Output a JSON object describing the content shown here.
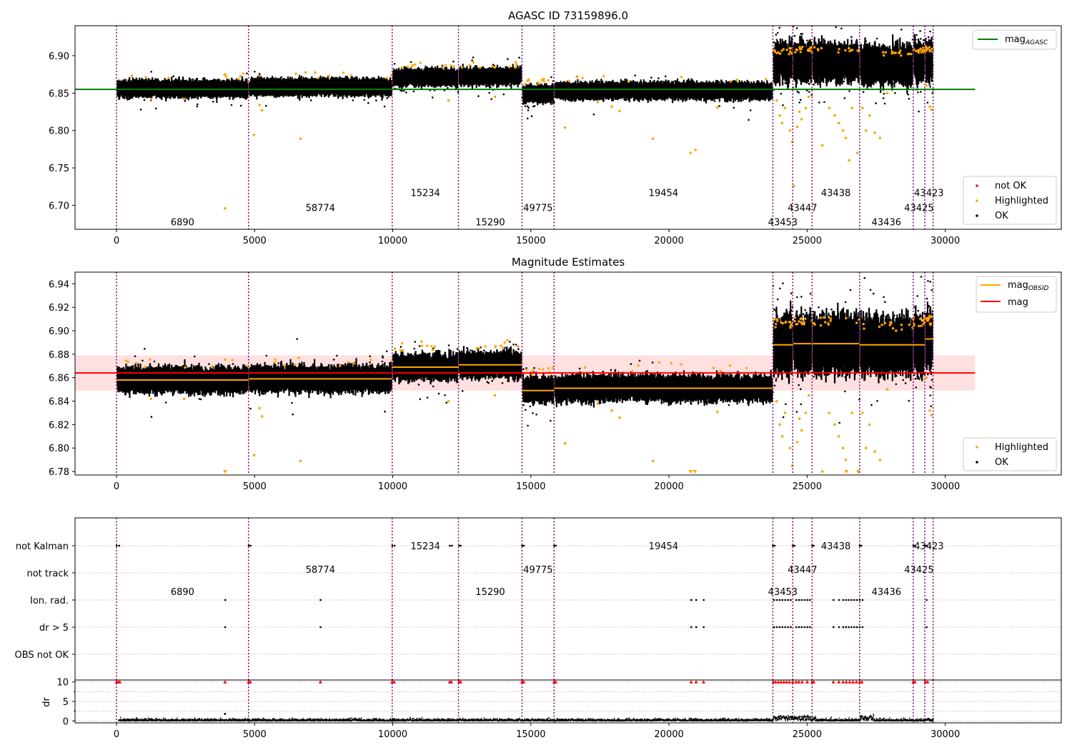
{
  "chart_data": [
    {
      "type": "scatter",
      "title": "AGASC ID 73159896.0",
      "xlim": [
        -1500,
        34200
      ],
      "ylim": [
        6.668,
        6.94
      ],
      "x_ticks": [
        0,
        5000,
        10000,
        15000,
        20000,
        25000,
        30000
      ],
      "y_ticks": [
        6.7,
        6.75,
        6.8,
        6.85,
        6.9
      ],
      "y_tick_labels": [
        "6.70",
        "6.75",
        "6.80",
        "6.85",
        "6.90"
      ],
      "grid": false,
      "obs_boundaries": [
        0,
        4780,
        9980,
        12380,
        14680,
        15840,
        23760,
        24480,
        25180,
        26900,
        28840,
        29260,
        29560
      ],
      "segments": [
        {
          "obsid": "6890",
          "x0": 0,
          "x1": 4780,
          "mean": 6.856
        },
        {
          "obsid": "58774",
          "x0": 4780,
          "x1": 9980,
          "mean": 6.858
        },
        {
          "obsid": "15234",
          "x0": 9980,
          "x1": 12380,
          "mean": 6.871
        },
        {
          "obsid": "15290",
          "x0": 12380,
          "x1": 14680,
          "mean": 6.872
        },
        {
          "obsid": "49775",
          "x0": 14680,
          "x1": 15840,
          "mean": 6.849
        },
        {
          "obsid": "19454",
          "x0": 15840,
          "x1": 23760,
          "mean": 6.853
        },
        {
          "obsid": "43453",
          "x0": 23760,
          "x1": 24480,
          "mean": 6.89
        },
        {
          "obsid": "43447",
          "x0": 24480,
          "x1": 25180,
          "mean": 6.892
        },
        {
          "obsid": "43438",
          "x0": 25180,
          "x1": 26900,
          "mean": 6.892
        },
        {
          "obsid": "43436",
          "x0": 26900,
          "x1": 28840,
          "mean": 6.888
        },
        {
          "obsid": "43425",
          "x0": 28840,
          "x1": 29260,
          "mean": 6.892
        },
        {
          "obsid": "43423",
          "x0": 29260,
          "x1": 29560,
          "mean": 6.893
        }
      ],
      "obsid_label_positions": [
        {
          "label": "6890",
          "x": 2390,
          "y": 6.677
        },
        {
          "label": "58774",
          "x": 7380,
          "y": 6.696
        },
        {
          "label": "15234",
          "x": 11180,
          "y": 6.716
        },
        {
          "label": "15290",
          "x": 13530,
          "y": 6.677
        },
        {
          "label": "49775",
          "x": 15260,
          "y": 6.696
        },
        {
          "label": "19454",
          "x": 19800,
          "y": 6.716
        },
        {
          "label": "43453",
          "x": 24120,
          "y": 6.677
        },
        {
          "label": "43447",
          "x": 24830,
          "y": 6.696
        },
        {
          "label": "43438",
          "x": 26040,
          "y": 6.716
        },
        {
          "label": "43436",
          "x": 27870,
          "y": 6.677
        },
        {
          "label": "43425",
          "x": 29050,
          "y": 6.696
        },
        {
          "label": "43423",
          "x": 29410,
          "y": 6.716
        }
      ],
      "mag_agasc": 6.855,
      "mag_agasc_xrange": [
        -1500,
        31080
      ],
      "legend_upper": {
        "position": "upper right",
        "entries": [
          "mag",
          "AGASC"
        ]
      },
      "legend_lower": {
        "position": "lower right",
        "entries": [
          "not OK",
          "Highlighted",
          "OK"
        ]
      },
      "highlighted_points": [
        [
          3930,
          6.696
        ],
        [
          4980,
          6.794
        ],
        [
          5270,
          6.827
        ],
        [
          5180,
          6.834
        ],
        [
          6660,
          6.789
        ],
        [
          1250,
          6.842
        ],
        [
          2450,
          6.842
        ],
        [
          12020,
          6.84
        ],
        [
          13700,
          6.845
        ],
        [
          16240,
          6.804
        ],
        [
          17420,
          6.838
        ],
        [
          18210,
          6.826
        ],
        [
          19420,
          6.789
        ],
        [
          20780,
          6.77
        ],
        [
          20960,
          6.774
        ],
        [
          21750,
          6.831
        ],
        [
          17930,
          6.832
        ],
        [
          23900,
          6.84
        ],
        [
          24010,
          6.82
        ],
        [
          24100,
          6.81
        ],
        [
          24200,
          6.83
        ],
        [
          24380,
          6.8
        ],
        [
          24460,
          6.785
        ],
        [
          24520,
          6.726
        ],
        [
          24640,
          6.805
        ],
        [
          24720,
          6.825
        ],
        [
          24800,
          6.815
        ],
        [
          24950,
          6.83
        ],
        [
          25060,
          6.845
        ],
        [
          25550,
          6.78
        ],
        [
          25800,
          6.83
        ],
        [
          26000,
          6.82
        ],
        [
          26150,
          6.81
        ],
        [
          26300,
          6.8
        ],
        [
          26400,
          6.79
        ],
        [
          26520,
          6.76
        ],
        [
          26620,
          6.83
        ],
        [
          26820,
          6.77
        ],
        [
          27000,
          6.83
        ],
        [
          27130,
          6.8
        ],
        [
          27260,
          6.82
        ],
        [
          27450,
          6.797
        ],
        [
          27640,
          6.79
        ],
        [
          27900,
          6.85
        ],
        [
          29320,
          6.86
        ],
        [
          29440,
          6.832
        ],
        [
          29500,
          6.828
        ]
      ]
    },
    {
      "type": "scatter",
      "title": "Magnitude Estimates",
      "xlim": [
        -1500,
        34200
      ],
      "ylim": [
        6.777,
        6.95
      ],
      "x_ticks": [
        0,
        5000,
        10000,
        15000,
        20000,
        25000,
        30000
      ],
      "y_ticks": [
        6.78,
        6.8,
        6.82,
        6.84,
        6.86,
        6.88,
        6.9,
        6.92,
        6.94
      ],
      "y_tick_labels": [
        "6.78",
        "6.80",
        "6.82",
        "6.84",
        "6.86",
        "6.88",
        "6.90",
        "6.92",
        "6.94"
      ],
      "grid": false,
      "mag": 6.864,
      "mag_band": [
        6.849,
        6.879
      ],
      "mag_xrange": [
        -1500,
        31080
      ],
      "segment_means": [
        6.858,
        6.859,
        6.869,
        6.871,
        6.849,
        6.851,
        6.888,
        6.889,
        6.889,
        6.888,
        6.888,
        6.893
      ],
      "legend_upper": {
        "position": "upper right",
        "entries": [
          "mag",
          "OBSID",
          "mag"
        ]
      },
      "legend_lower": {
        "position": "lower right",
        "entries": [
          "Highlighted",
          "OK"
        ]
      },
      "clipped_low_x": [
        3930,
        20780,
        20940,
        26420,
        26850
      ]
    },
    {
      "type": "scatter",
      "title": "",
      "xlim": [
        -1500,
        34200
      ],
      "x_ticks": [
        0,
        5000,
        10000,
        15000,
        20000,
        25000,
        30000
      ],
      "flag_rows": [
        "not Kalman",
        "not track",
        "Ion. rad.",
        "dr > 5",
        "OBS not OK"
      ],
      "flags": {
        "not Kalman": [
          0,
          90,
          4780,
          4850,
          9980,
          10060,
          12060,
          12140,
          12400,
          12460,
          14680,
          14740,
          15840,
          15900,
          23760,
          23820,
          24480,
          24540,
          25180,
          25230,
          26900,
          26960,
          28840,
          28900,
          29260,
          29320
        ],
        "not track": [],
        "Ion. rad.": [
          3930,
          7380,
          20800,
          20980,
          21250,
          23800,
          23900,
          24000,
          24100,
          24200,
          24300,
          24400,
          24600,
          24700,
          24800,
          24900,
          25000,
          25100,
          25950,
          26150,
          26300,
          26400,
          26500,
          26600,
          26700,
          26800,
          26900,
          27000,
          29320
        ],
        "dr > 5": [
          3930,
          7380,
          20800,
          20980,
          21250,
          23800,
          23900,
          24000,
          24100,
          24200,
          24300,
          24400,
          24600,
          24700,
          24800,
          24900,
          25000,
          25100,
          25950,
          26150,
          26300,
          26400,
          26500,
          26600,
          26700,
          26800,
          26900,
          27000,
          29320
        ],
        "OBS not OK": []
      },
      "dr_ylabel": "dr",
      "dr_ylim": [
        -0.5,
        10.5
      ],
      "dr_ticks": [
        0,
        5,
        10
      ],
      "dr_tick_labels": [
        "0",
        "5",
        "10"
      ],
      "dr_clipped_x": [
        0,
        60,
        120,
        3930,
        4780,
        4840,
        7380,
        9980,
        10050,
        12060,
        12120,
        12400,
        12460,
        14680,
        14740,
        15840,
        15900,
        20800,
        20980,
        21250,
        23780,
        23860,
        23960,
        24060,
        24160,
        24260,
        24360,
        24480,
        24600,
        24700,
        24820,
        25000,
        25180,
        25240,
        25950,
        26150,
        26300,
        26420,
        26540,
        26660,
        26780,
        26900,
        26980,
        28840,
        28900,
        29280,
        29360
      ]
    }
  ]
}
